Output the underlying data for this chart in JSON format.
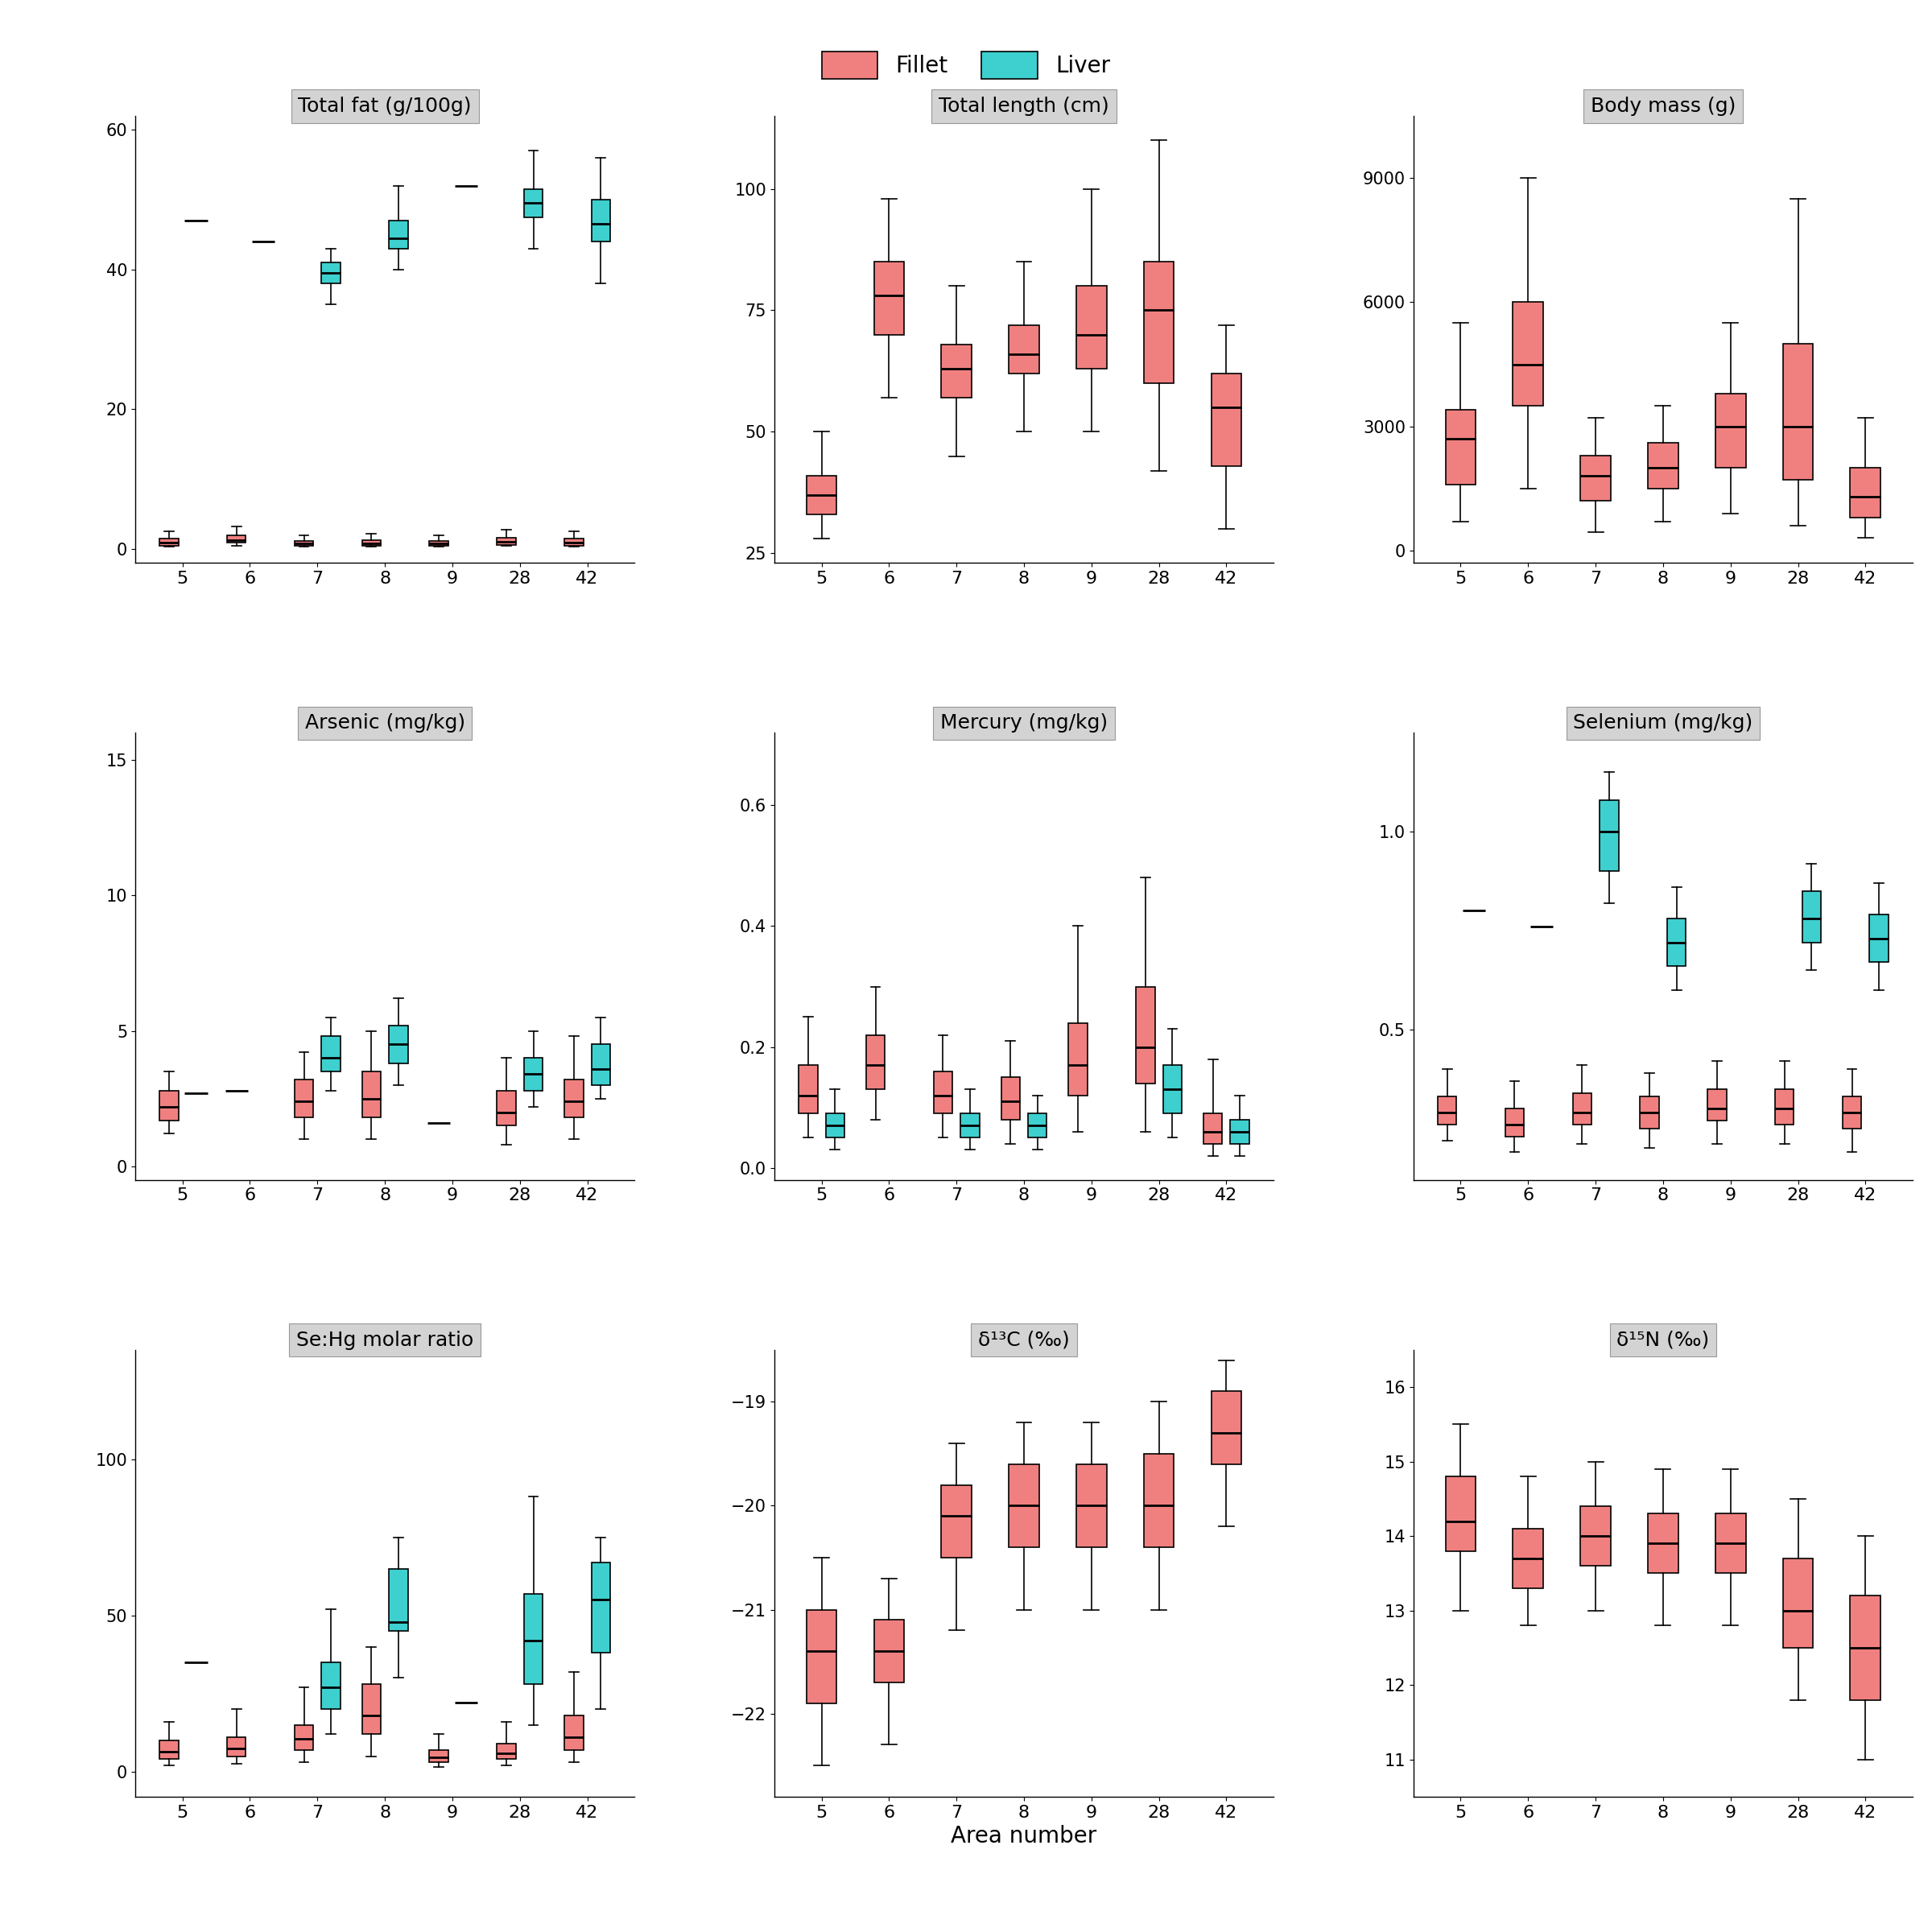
{
  "areas": [
    5,
    6,
    7,
    8,
    9,
    28,
    42
  ],
  "fillet_color": "#F08080",
  "liver_color": "#3ECFCF",
  "background_color": "#FFFFFF",
  "panel_title_bg": "#D3D3D3",
  "panels": [
    {
      "title": "Total fat (g/100g)",
      "ylim": [
        -2,
        62
      ],
      "yticks": [
        0,
        20,
        40,
        60
      ],
      "has_liver": true,
      "fillet": {
        "5": {
          "whislo": 0.3,
          "q1": 0.5,
          "med": 0.9,
          "q3": 1.5,
          "whishi": 2.5
        },
        "6": {
          "whislo": 0.5,
          "q1": 0.9,
          "med": 1.3,
          "q3": 2.0,
          "whishi": 3.2
        },
        "7": {
          "whislo": 0.3,
          "q1": 0.5,
          "med": 0.8,
          "q3": 1.2,
          "whishi": 2.0
        },
        "8": {
          "whislo": 0.3,
          "q1": 0.5,
          "med": 0.8,
          "q3": 1.3,
          "whishi": 2.2
        },
        "9": {
          "whislo": 0.3,
          "q1": 0.5,
          "med": 0.8,
          "q3": 1.2,
          "whishi": 2.0
        },
        "28": {
          "whislo": 0.4,
          "q1": 0.6,
          "med": 1.0,
          "q3": 1.6,
          "whishi": 2.8
        },
        "42": {
          "whislo": 0.3,
          "q1": 0.5,
          "med": 0.9,
          "q3": 1.5,
          "whishi": 2.5
        }
      },
      "liver": {
        "5": {
          "med_only": 47.0
        },
        "6": {
          "med_only": 44.0
        },
        "7": {
          "whislo": 35.0,
          "q1": 38.0,
          "med": 39.5,
          "q3": 41.0,
          "whishi": 43.0
        },
        "8": {
          "whislo": 40.0,
          "q1": 43.0,
          "med": 44.5,
          "q3": 47.0,
          "whishi": 52.0
        },
        "9": {
          "med_only": 52.0
        },
        "28": {
          "whislo": 43.0,
          "q1": 47.5,
          "med": 49.5,
          "q3": 51.5,
          "whishi": 57.0
        },
        "42": {
          "whislo": 38.0,
          "q1": 44.0,
          "med": 46.5,
          "q3": 50.0,
          "whishi": 56.0
        }
      }
    },
    {
      "title": "Total length (cm)",
      "ylim": [
        23,
        115
      ],
      "yticks": [
        25,
        50,
        75,
        100
      ],
      "has_liver": false,
      "fillet": {
        "5": {
          "whislo": 28.0,
          "q1": 33.0,
          "med": 37.0,
          "q3": 41.0,
          "whishi": 50.0
        },
        "6": {
          "whislo": 57.0,
          "q1": 70.0,
          "med": 78.0,
          "q3": 85.0,
          "whishi": 98.0
        },
        "7": {
          "whislo": 45.0,
          "q1": 57.0,
          "med": 63.0,
          "q3": 68.0,
          "whishi": 80.0
        },
        "8": {
          "whislo": 50.0,
          "q1": 62.0,
          "med": 66.0,
          "q3": 72.0,
          "whishi": 85.0
        },
        "9": {
          "whislo": 50.0,
          "q1": 63.0,
          "med": 70.0,
          "q3": 80.0,
          "whishi": 100.0
        },
        "28": {
          "whislo": 42.0,
          "q1": 60.0,
          "med": 75.0,
          "q3": 85.0,
          "whishi": 110.0
        },
        "42": {
          "whislo": 30.0,
          "q1": 43.0,
          "med": 55.0,
          "q3": 62.0,
          "whishi": 72.0
        }
      },
      "liver": null
    },
    {
      "title": "Body mass (g)",
      "ylim": [
        -300,
        10500
      ],
      "yticks": [
        0,
        3000,
        6000,
        9000
      ],
      "has_liver": false,
      "fillet": {
        "5": {
          "whislo": 700.0,
          "q1": 1600.0,
          "med": 2700.0,
          "q3": 3400.0,
          "whishi": 5500.0
        },
        "6": {
          "whislo": 1500.0,
          "q1": 3500.0,
          "med": 4500.0,
          "q3": 6000.0,
          "whishi": 9000.0
        },
        "7": {
          "whislo": 450.0,
          "q1": 1200.0,
          "med": 1800.0,
          "q3": 2300.0,
          "whishi": 3200.0
        },
        "8": {
          "whislo": 700.0,
          "q1": 1500.0,
          "med": 2000.0,
          "q3": 2600.0,
          "whishi": 3500.0
        },
        "9": {
          "whislo": 900.0,
          "q1": 2000.0,
          "med": 3000.0,
          "q3": 3800.0,
          "whishi": 5500.0
        },
        "28": {
          "whislo": 600.0,
          "q1": 1700.0,
          "med": 3000.0,
          "q3": 5000.0,
          "whishi": 8500.0
        },
        "42": {
          "whislo": 300.0,
          "q1": 800.0,
          "med": 1300.0,
          "q3": 2000.0,
          "whishi": 3200.0
        }
      },
      "liver": null
    },
    {
      "title": "Arsenic (mg/kg)",
      "ylim": [
        -0.5,
        16
      ],
      "yticks": [
        0,
        5,
        10,
        15
      ],
      "has_liver": true,
      "fillet": {
        "5": {
          "whislo": 1.2,
          "q1": 1.7,
          "med": 2.2,
          "q3": 2.8,
          "whishi": 3.5
        },
        "6": {
          "med_only": 2.8
        },
        "7": {
          "whislo": 1.0,
          "q1": 1.8,
          "med": 2.4,
          "q3": 3.2,
          "whishi": 4.2
        },
        "8": {
          "whislo": 1.0,
          "q1": 1.8,
          "med": 2.5,
          "q3": 3.5,
          "whishi": 5.0
        },
        "9": {
          "med_only": 1.6
        },
        "28": {
          "whislo": 0.8,
          "q1": 1.5,
          "med": 2.0,
          "q3": 2.8,
          "whishi": 4.0
        },
        "42": {
          "whislo": 1.0,
          "q1": 1.8,
          "med": 2.4,
          "q3": 3.2,
          "whishi": 4.8
        }
      },
      "liver": {
        "5": {
          "med_only": 2.7
        },
        "6": null,
        "7": {
          "whislo": 2.8,
          "q1": 3.5,
          "med": 4.0,
          "q3": 4.8,
          "whishi": 5.5
        },
        "8": {
          "whislo": 3.0,
          "q1": 3.8,
          "med": 4.5,
          "q3": 5.2,
          "whishi": 6.2
        },
        "9": null,
        "28": {
          "whislo": 2.2,
          "q1": 2.8,
          "med": 3.4,
          "q3": 4.0,
          "whishi": 5.0
        },
        "42": {
          "whislo": 2.5,
          "q1": 3.0,
          "med": 3.6,
          "q3": 4.5,
          "whishi": 5.5
        }
      }
    },
    {
      "title": "Mercury (mg/kg)",
      "ylim": [
        -0.02,
        0.72
      ],
      "yticks": [
        0.0,
        0.2,
        0.4,
        0.6
      ],
      "has_liver": true,
      "fillet": {
        "5": {
          "whislo": 0.05,
          "q1": 0.09,
          "med": 0.12,
          "q3": 0.17,
          "whishi": 0.25
        },
        "6": {
          "whislo": 0.08,
          "q1": 0.13,
          "med": 0.17,
          "q3": 0.22,
          "whishi": 0.3
        },
        "7": {
          "whislo": 0.05,
          "q1": 0.09,
          "med": 0.12,
          "q3": 0.16,
          "whishi": 0.22
        },
        "8": {
          "whislo": 0.04,
          "q1": 0.08,
          "med": 0.11,
          "q3": 0.15,
          "whishi": 0.21
        },
        "9": {
          "whislo": 0.06,
          "q1": 0.12,
          "med": 0.17,
          "q3": 0.24,
          "whishi": 0.4
        },
        "28": {
          "whislo": 0.06,
          "q1": 0.14,
          "med": 0.2,
          "q3": 0.3,
          "whishi": 0.48
        },
        "42": {
          "whislo": 0.02,
          "q1": 0.04,
          "med": 0.06,
          "q3": 0.09,
          "whishi": 0.18
        }
      },
      "liver": {
        "5": {
          "whislo": 0.03,
          "q1": 0.05,
          "med": 0.07,
          "q3": 0.09,
          "whishi": 0.13
        },
        "6": null,
        "7": {
          "whislo": 0.03,
          "q1": 0.05,
          "med": 0.07,
          "q3": 0.09,
          "whishi": 0.13
        },
        "8": {
          "whislo": 0.03,
          "q1": 0.05,
          "med": 0.07,
          "q3": 0.09,
          "whishi": 0.12
        },
        "9": null,
        "28": {
          "whislo": 0.05,
          "q1": 0.09,
          "med": 0.13,
          "q3": 0.17,
          "whishi": 0.23
        },
        "42": {
          "whislo": 0.02,
          "q1": 0.04,
          "med": 0.06,
          "q3": 0.08,
          "whishi": 0.12
        }
      }
    },
    {
      "title": "Selenium (mg/kg)",
      "ylim": [
        0.12,
        1.25
      ],
      "yticks": [
        0.5,
        1.0
      ],
      "has_liver": true,
      "fillet": {
        "5": {
          "whislo": 0.22,
          "q1": 0.26,
          "med": 0.29,
          "q3": 0.33,
          "whishi": 0.4
        },
        "6": {
          "whislo": 0.19,
          "q1": 0.23,
          "med": 0.26,
          "q3": 0.3,
          "whishi": 0.37
        },
        "7": {
          "whislo": 0.21,
          "q1": 0.26,
          "med": 0.29,
          "q3": 0.34,
          "whishi": 0.41
        },
        "8": {
          "whislo": 0.2,
          "q1": 0.25,
          "med": 0.29,
          "q3": 0.33,
          "whishi": 0.39
        },
        "9": {
          "whislo": 0.21,
          "q1": 0.27,
          "med": 0.3,
          "q3": 0.35,
          "whishi": 0.42
        },
        "28": {
          "whislo": 0.21,
          "q1": 0.26,
          "med": 0.3,
          "q3": 0.35,
          "whishi": 0.42
        },
        "42": {
          "whislo": 0.19,
          "q1": 0.25,
          "med": 0.29,
          "q3": 0.33,
          "whishi": 0.4
        }
      },
      "liver": {
        "5": {
          "med_only": 0.8
        },
        "6": {
          "med_only": 0.76
        },
        "7": {
          "whislo": 0.82,
          "q1": 0.9,
          "med": 1.0,
          "q3": 1.08,
          "whishi": 1.15
        },
        "8": {
          "whislo": 0.6,
          "q1": 0.66,
          "med": 0.72,
          "q3": 0.78,
          "whishi": 0.86
        },
        "9": null,
        "28": {
          "whislo": 0.65,
          "q1": 0.72,
          "med": 0.78,
          "q3": 0.85,
          "whishi": 0.92
        },
        "42": {
          "whislo": 0.6,
          "q1": 0.67,
          "med": 0.73,
          "q3": 0.79,
          "whishi": 0.87
        }
      }
    },
    {
      "title": "Se:Hg molar ratio",
      "ylim": [
        -8,
        135
      ],
      "yticks": [
        0,
        50,
        100
      ],
      "has_liver": true,
      "fillet": {
        "5": {
          "whislo": 2.0,
          "q1": 4.0,
          "med": 6.5,
          "q3": 10.0,
          "whishi": 16.0
        },
        "6": {
          "whislo": 2.5,
          "q1": 5.0,
          "med": 7.5,
          "q3": 11.0,
          "whishi": 20.0
        },
        "7": {
          "whislo": 3.0,
          "q1": 7.0,
          "med": 10.5,
          "q3": 15.0,
          "whishi": 27.0
        },
        "8": {
          "whislo": 5.0,
          "q1": 12.0,
          "med": 18.0,
          "q3": 28.0,
          "whishi": 40.0
        },
        "9": {
          "whislo": 1.5,
          "q1": 3.0,
          "med": 4.5,
          "q3": 7.0,
          "whishi": 12.0
        },
        "28": {
          "whislo": 2.0,
          "q1": 4.0,
          "med": 6.0,
          "q3": 9.0,
          "whishi": 16.0
        },
        "42": {
          "whislo": 3.0,
          "q1": 7.0,
          "med": 11.0,
          "q3": 18.0,
          "whishi": 32.0
        }
      },
      "liver": {
        "5": {
          "med_only": 35.0
        },
        "6": null,
        "7": {
          "whislo": 12.0,
          "q1": 20.0,
          "med": 27.0,
          "q3": 35.0,
          "whishi": 52.0
        },
        "8": {
          "whislo": 30.0,
          "q1": 45.0,
          "med": 48.0,
          "q3": 65.0,
          "whishi": 75.0
        },
        "9": {
          "med_only": 22.0
        },
        "28": {
          "whislo": 15.0,
          "q1": 28.0,
          "med": 42.0,
          "q3": 57.0,
          "whishi": 88.0
        },
        "42": {
          "whislo": 20.0,
          "q1": 38.0,
          "med": 55.0,
          "q3": 67.0,
          "whishi": 75.0
        }
      }
    },
    {
      "title": "δ¹³C (‰)",
      "ylim": [
        -22.8,
        -18.5
      ],
      "yticks": [
        -22,
        -21,
        -20,
        -19
      ],
      "has_liver": false,
      "fillet": {
        "5": {
          "whislo": -22.5,
          "q1": -21.9,
          "med": -21.4,
          "q3": -21.0,
          "whishi": -20.5
        },
        "6": {
          "whislo": -22.3,
          "q1": -21.7,
          "med": -21.4,
          "q3": -21.1,
          "whishi": -20.7
        },
        "7": {
          "whislo": -21.2,
          "q1": -20.5,
          "med": -20.1,
          "q3": -19.8,
          "whishi": -19.4
        },
        "8": {
          "whislo": -21.0,
          "q1": -20.4,
          "med": -20.0,
          "q3": -19.6,
          "whishi": -19.2
        },
        "9": {
          "whislo": -21.0,
          "q1": -20.4,
          "med": -20.0,
          "q3": -19.6,
          "whishi": -19.2
        },
        "28": {
          "whislo": -21.0,
          "q1": -20.4,
          "med": -20.0,
          "q3": -19.5,
          "whishi": -19.0
        },
        "42": {
          "whislo": -20.2,
          "q1": -19.6,
          "med": -19.3,
          "q3": -18.9,
          "whishi": -18.6
        }
      },
      "liver": null
    },
    {
      "title": "δ¹⁵N (‰)",
      "ylim": [
        10.5,
        16.5
      ],
      "yticks": [
        11,
        12,
        13,
        14,
        15,
        16
      ],
      "has_liver": false,
      "fillet": {
        "5": {
          "whislo": 13.0,
          "q1": 13.8,
          "med": 14.2,
          "q3": 14.8,
          "whishi": 15.5
        },
        "6": {
          "whislo": 12.8,
          "q1": 13.3,
          "med": 13.7,
          "q3": 14.1,
          "whishi": 14.8
        },
        "7": {
          "whislo": 13.0,
          "q1": 13.6,
          "med": 14.0,
          "q3": 14.4,
          "whishi": 15.0
        },
        "8": {
          "whislo": 12.8,
          "q1": 13.5,
          "med": 13.9,
          "q3": 14.3,
          "whishi": 14.9
        },
        "9": {
          "whislo": 12.8,
          "q1": 13.5,
          "med": 13.9,
          "q3": 14.3,
          "whishi": 14.9
        },
        "28": {
          "whislo": 11.8,
          "q1": 12.5,
          "med": 13.0,
          "q3": 13.7,
          "whishi": 14.5
        },
        "42": {
          "whislo": 11.0,
          "q1": 11.8,
          "med": 12.5,
          "q3": 13.2,
          "whishi": 14.0
        }
      },
      "liver": null
    }
  ]
}
